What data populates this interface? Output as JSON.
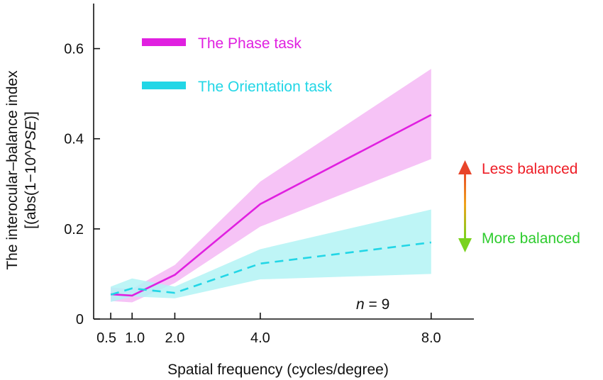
{
  "chart_data": {
    "type": "line",
    "xlabel": "Spatial frequency (cycles/degree)",
    "ylabel_line1": "The interocular–balance index",
    "ylabel_line2_prefix": "[(abs(1−10^",
    "ylabel_line2_italic": "PSE",
    "ylabel_line2_suffix": ")]",
    "x": [
      0.5,
      1.0,
      2.0,
      4.0,
      8.0
    ],
    "x_tick_labels": [
      "0.5",
      "1.0",
      "2.0",
      "4.0",
      "8.0"
    ],
    "y_ticks": [
      0,
      0.2,
      0.4,
      0.6
    ],
    "y_tick_labels": [
      "0",
      "0.2",
      "0.4",
      "0.6"
    ],
    "xlim": [
      0.1,
      9.0
    ],
    "ylim": [
      0,
      0.7
    ],
    "series": [
      {
        "name": "The Phase task",
        "color": "#e020e0",
        "band_color": "#f4b8f4",
        "style": "solid",
        "values": [
          0.055,
          0.052,
          0.098,
          0.255,
          0.453
        ],
        "lower": [
          0.04,
          0.037,
          0.08,
          0.205,
          0.355
        ],
        "upper": [
          0.07,
          0.067,
          0.12,
          0.305,
          0.555
        ]
      },
      {
        "name": "The Orientation task",
        "color": "#22d6e6",
        "band_color": "#b3f3f5",
        "style": "dashed",
        "values": [
          0.054,
          0.068,
          0.058,
          0.123,
          0.17
        ],
        "lower": [
          0.038,
          0.05,
          0.046,
          0.088,
          0.1
        ],
        "upper": [
          0.072,
          0.09,
          0.072,
          0.155,
          0.243
        ]
      }
    ],
    "annotation_n": {
      "italic": "n",
      "rest": " = 9"
    },
    "arrow_legend": {
      "up_label": "Less balanced",
      "down_label": "More balanced",
      "up_color": "#ee1c25",
      "down_color": "#2ecc2e"
    }
  }
}
